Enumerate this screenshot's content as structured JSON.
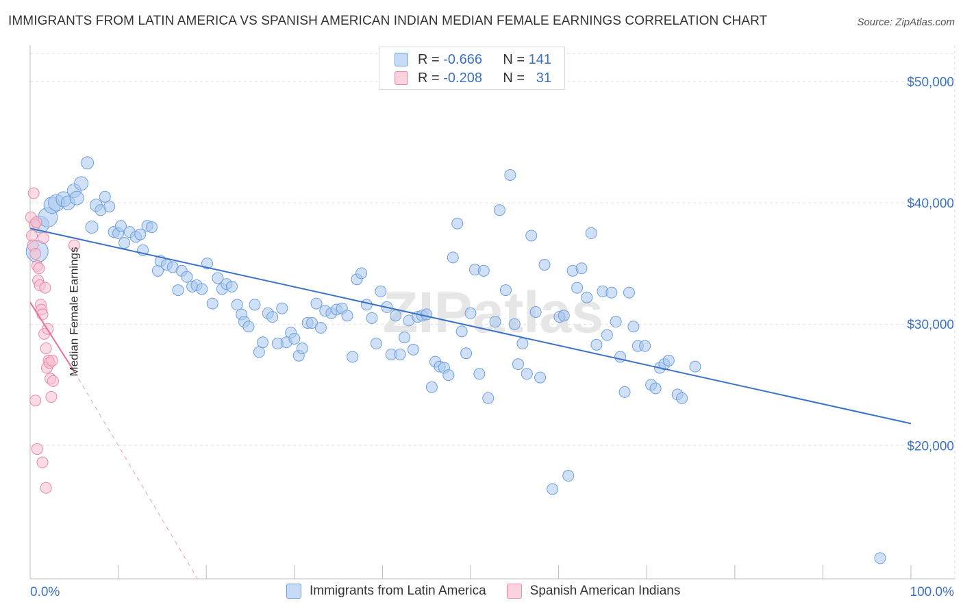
{
  "title": "IMMIGRANTS FROM LATIN AMERICA VS SPANISH AMERICAN INDIAN MEDIAN FEMALE EARNINGS CORRELATION CHART",
  "source": "Source: ZipAtlas.com",
  "watermark": "ZIPatlas",
  "legend": {
    "rows": [
      {
        "r_label": "R =",
        "r_value": "-0.666",
        "n_label": "N =",
        "n_value": "141",
        "color": "#a9c8f0",
        "border": "#6e9fdc"
      },
      {
        "r_label": "R =",
        "r_value": "-0.208",
        "n_label": "N =",
        "n_value": "31",
        "color": "#f7bfd0",
        "border": "#e98aaa"
      }
    ]
  },
  "bottom_legend": {
    "series1": "Immigrants from Latin America",
    "series2": "Spanish American Indians"
  },
  "chart_data": {
    "type": "scatter",
    "title": "IMMIGRANTS FROM LATIN AMERICA VS SPANISH AMERICAN INDIAN MEDIAN FEMALE EARNINGS CORRELATION CHART",
    "ylabel": "Median Female Earnings",
    "xlabel": "",
    "xlim": [
      0,
      100
    ],
    "ylim": [
      9000,
      53000
    ],
    "x_tick_labels": [
      "0.0%",
      "100.0%"
    ],
    "y_ticks": [
      20000,
      30000,
      40000,
      50000
    ],
    "y_tick_labels": [
      "$20,000",
      "$30,000",
      "$40,000",
      "$50,000"
    ],
    "grid": true,
    "legend_position": "top-center",
    "colors": {
      "blue": "#3a72c9",
      "blue_fill": "#a9c8f0",
      "pink": "#e8719a",
      "pink_fill": "#f7bfd0",
      "grid": "#dddddd"
    },
    "series": [
      {
        "name": "Immigrants from Latin America",
        "r": -0.666,
        "n": 141,
        "trend": {
          "x": [
            0,
            100
          ],
          "y": [
            37900,
            21800
          ]
        },
        "points": [
          [
            0.8,
            36000,
            16
          ],
          [
            1.2,
            38200,
            12
          ],
          [
            2.0,
            38800,
            14
          ],
          [
            2.5,
            39800,
            12
          ],
          [
            3.0,
            40000,
            12
          ],
          [
            3.8,
            40300,
            11
          ],
          [
            4.3,
            40000,
            10
          ],
          [
            5.0,
            41000,
            10
          ],
          [
            5.3,
            40400,
            10
          ],
          [
            5.8,
            41600,
            10
          ],
          [
            6.5,
            43300,
            9
          ],
          [
            7.0,
            38000,
            9
          ],
          [
            7.5,
            39800,
            9
          ],
          [
            8.0,
            39400,
            8
          ],
          [
            8.5,
            40500,
            8
          ],
          [
            9.0,
            39700,
            8
          ],
          [
            9.5,
            37600,
            8
          ],
          [
            10.0,
            37500,
            8
          ],
          [
            10.3,
            38100,
            8
          ],
          [
            10.7,
            36700,
            8
          ],
          [
            11.3,
            37600,
            8
          ],
          [
            12.0,
            37200,
            8
          ],
          [
            12.5,
            37400,
            8
          ],
          [
            12.8,
            36100,
            8
          ],
          [
            13.3,
            38100,
            8
          ],
          [
            13.8,
            38000,
            8
          ],
          [
            14.5,
            34400,
            8
          ],
          [
            14.8,
            35200,
            8
          ],
          [
            15.5,
            34900,
            8
          ],
          [
            16.2,
            34700,
            8
          ],
          [
            16.8,
            32800,
            8
          ],
          [
            17.2,
            34400,
            8
          ],
          [
            17.8,
            33900,
            8
          ],
          [
            18.4,
            33100,
            8
          ],
          [
            18.9,
            33200,
            8
          ],
          [
            19.5,
            32900,
            8
          ],
          [
            20.1,
            35000,
            8
          ],
          [
            20.7,
            31700,
            8
          ],
          [
            21.3,
            33800,
            8
          ],
          [
            21.8,
            32900,
            8
          ],
          [
            22.3,
            33300,
            8
          ],
          [
            22.9,
            33100,
            8
          ],
          [
            23.5,
            31600,
            8
          ],
          [
            24.0,
            30800,
            8
          ],
          [
            24.3,
            30200,
            8
          ],
          [
            24.8,
            29800,
            8
          ],
          [
            25.5,
            31600,
            8
          ],
          [
            26.0,
            27700,
            8
          ],
          [
            26.4,
            28500,
            8
          ],
          [
            27.0,
            30900,
            8
          ],
          [
            27.5,
            30600,
            8
          ],
          [
            28.1,
            28400,
            8
          ],
          [
            28.6,
            31300,
            8
          ],
          [
            29.1,
            28500,
            8
          ],
          [
            29.6,
            29300,
            8
          ],
          [
            30.0,
            28800,
            8
          ],
          [
            30.5,
            27400,
            8
          ],
          [
            30.9,
            28000,
            8
          ],
          [
            31.5,
            30100,
            8
          ],
          [
            32.0,
            30100,
            8
          ],
          [
            32.5,
            31700,
            8
          ],
          [
            33.0,
            29700,
            8
          ],
          [
            33.5,
            31100,
            8
          ],
          [
            34.2,
            30900,
            8
          ],
          [
            34.8,
            31200,
            8
          ],
          [
            35.4,
            31300,
            8
          ],
          [
            36.0,
            30700,
            8
          ],
          [
            36.6,
            27300,
            8
          ],
          [
            37.1,
            33700,
            8
          ],
          [
            37.6,
            34200,
            8
          ],
          [
            38.2,
            31600,
            8
          ],
          [
            38.8,
            30500,
            8
          ],
          [
            39.3,
            28400,
            8
          ],
          [
            39.8,
            32700,
            8
          ],
          [
            40.5,
            31400,
            8
          ],
          [
            41.0,
            27500,
            8
          ],
          [
            41.5,
            30700,
            8
          ],
          [
            42.0,
            27500,
            8
          ],
          [
            42.5,
            28900,
            8
          ],
          [
            43.0,
            30300,
            8
          ],
          [
            43.5,
            27900,
            8
          ],
          [
            44.0,
            30600,
            8
          ],
          [
            44.5,
            30700,
            8
          ],
          [
            45.0,
            30800,
            8
          ],
          [
            45.6,
            24800,
            8
          ],
          [
            46.0,
            26900,
            8
          ],
          [
            46.5,
            26500,
            8
          ],
          [
            47.0,
            26400,
            8
          ],
          [
            47.5,
            25800,
            8
          ],
          [
            48.0,
            35500,
            8
          ],
          [
            48.5,
            38300,
            8
          ],
          [
            49.0,
            29400,
            8
          ],
          [
            49.5,
            27600,
            8
          ],
          [
            50.0,
            30900,
            8
          ],
          [
            50.5,
            34500,
            8
          ],
          [
            51.0,
            25900,
            8
          ],
          [
            51.5,
            34400,
            8
          ],
          [
            52.0,
            23900,
            8
          ],
          [
            52.8,
            30200,
            8
          ],
          [
            53.3,
            39400,
            8
          ],
          [
            54.0,
            32800,
            8
          ],
          [
            54.5,
            42300,
            8
          ],
          [
            55.0,
            30000,
            8
          ],
          [
            55.4,
            26700,
            8
          ],
          [
            55.9,
            28400,
            8
          ],
          [
            56.4,
            25900,
            8
          ],
          [
            56.9,
            37300,
            8
          ],
          [
            57.4,
            31000,
            8
          ],
          [
            57.9,
            25600,
            8
          ],
          [
            58.4,
            34900,
            8
          ],
          [
            59.3,
            16400,
            8
          ],
          [
            60.1,
            30600,
            8
          ],
          [
            60.6,
            30700,
            8
          ],
          [
            61.1,
            17500,
            8
          ],
          [
            61.6,
            34400,
            8
          ],
          [
            62.1,
            33000,
            8
          ],
          [
            62.6,
            34600,
            8
          ],
          [
            63.2,
            32200,
            8
          ],
          [
            63.7,
            37500,
            8
          ],
          [
            64.3,
            28300,
            8
          ],
          [
            65.0,
            32700,
            8
          ],
          [
            65.5,
            29100,
            8
          ],
          [
            66.0,
            32600,
            8
          ],
          [
            66.5,
            30200,
            8
          ],
          [
            67.0,
            27300,
            8
          ],
          [
            67.5,
            24400,
            8
          ],
          [
            68.0,
            32600,
            8
          ],
          [
            68.5,
            29800,
            8
          ],
          [
            69.0,
            28200,
            8
          ],
          [
            69.8,
            28200,
            8
          ],
          [
            70.5,
            25000,
            8
          ],
          [
            71.0,
            24700,
            8
          ],
          [
            71.5,
            26400,
            8
          ],
          [
            72.0,
            26700,
            8
          ],
          [
            72.5,
            27000,
            8
          ],
          [
            73.5,
            24200,
            8
          ],
          [
            74.0,
            23900,
            8
          ],
          [
            75.5,
            26500,
            8
          ],
          [
            96.5,
            10700,
            8
          ]
        ]
      },
      {
        "name": "Spanish American Indians",
        "r": -0.208,
        "n": 31,
        "trend": {
          "x": [
            0,
            5.0
          ],
          "y": [
            31800,
            26100
          ]
        },
        "trend_ext": {
          "x": [
            5.0,
            19.0
          ],
          "y": [
            26100,
            9000
          ]
        },
        "points": [
          [
            0.1,
            38800,
            8
          ],
          [
            0.2,
            37300,
            8
          ],
          [
            0.3,
            36500,
            8
          ],
          [
            0.4,
            40800,
            8
          ],
          [
            0.5,
            38200,
            8
          ],
          [
            0.6,
            35800,
            8
          ],
          [
            0.7,
            38400,
            8
          ],
          [
            0.8,
            34800,
            8
          ],
          [
            0.9,
            33600,
            8
          ],
          [
            1.0,
            34600,
            8
          ],
          [
            1.1,
            33200,
            8
          ],
          [
            1.2,
            31600,
            8
          ],
          [
            1.3,
            31200,
            8
          ],
          [
            1.4,
            30800,
            8
          ],
          [
            1.5,
            37100,
            8
          ],
          [
            1.6,
            29200,
            8
          ],
          [
            1.7,
            33000,
            8
          ],
          [
            1.8,
            28000,
            8
          ],
          [
            1.9,
            26400,
            8
          ],
          [
            2.0,
            29600,
            8
          ],
          [
            2.1,
            27000,
            8
          ],
          [
            2.2,
            26800,
            8
          ],
          [
            2.3,
            25500,
            8
          ],
          [
            2.4,
            24000,
            8
          ],
          [
            2.5,
            27000,
            8
          ],
          [
            2.6,
            25300,
            8
          ],
          [
            0.6,
            23700,
            8
          ],
          [
            0.8,
            19700,
            8
          ],
          [
            1.4,
            18600,
            8
          ],
          [
            1.8,
            16500,
            8
          ],
          [
            5.0,
            36500,
            8
          ]
        ]
      }
    ]
  }
}
